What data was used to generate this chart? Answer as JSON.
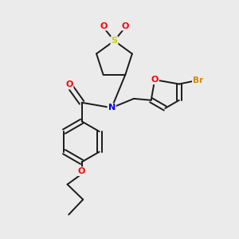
{
  "bg_color": "#ebebeb",
  "bond_color": "#1a1a1a",
  "atom_colors": {
    "O": "#ff0000",
    "N": "#0000ee",
    "S": "#cccc00",
    "Br": "#cc8800",
    "C": "#1a1a1a"
  },
  "lw": 1.4,
  "dbo": 0.12
}
